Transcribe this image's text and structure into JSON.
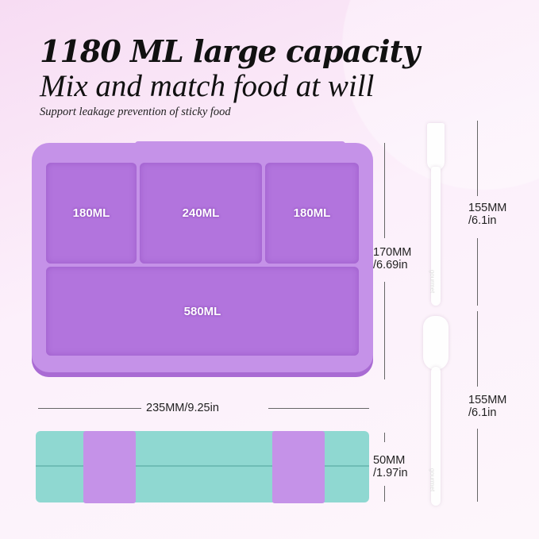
{
  "headline": "1180 ML large capacity",
  "subheadline": "Mix and match food at will",
  "tagline": "Support leakage prevention of sticky food",
  "compartments": [
    {
      "label": "180ML"
    },
    {
      "label": "240ML"
    },
    {
      "label": "180ML"
    },
    {
      "label": "580ML"
    }
  ],
  "dimensions": {
    "length": "170MM",
    "length_in": "/6.69in",
    "width": "235MM/9.25in",
    "height": "50MM",
    "height_in": "/1.97in",
    "fork": "155MM",
    "fork_in": "/6.1in",
    "spoon": "155MM",
    "spoon_in": "/6.1in"
  },
  "utensil_brand": "gourmet",
  "colors": {
    "box": "#c592e8",
    "lid": "#8fd8d1",
    "background": "#fcf0fb"
  }
}
